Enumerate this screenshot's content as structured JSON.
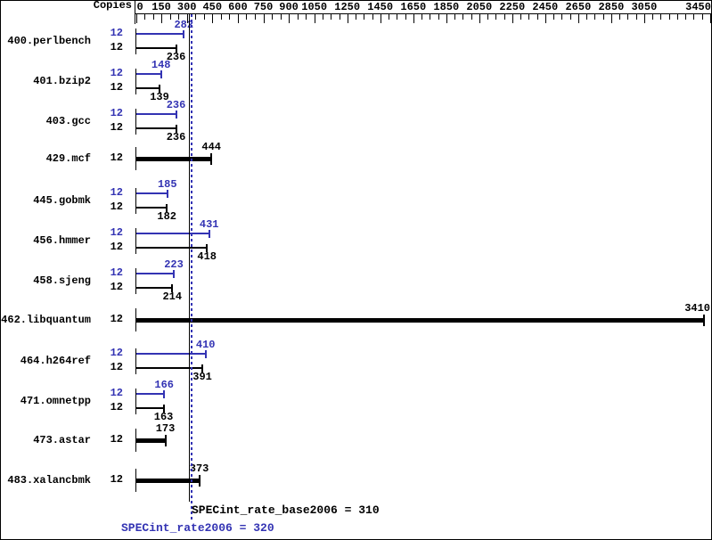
{
  "header": {
    "copies_label": "Copies"
  },
  "colors": {
    "peak": "#3333b3",
    "base": "#000000"
  },
  "chart_data": {
    "type": "bar",
    "orientation": "horizontal",
    "title": "",
    "xlabel": "",
    "ylabel": "Copies",
    "axis": {
      "min": 0,
      "max": 3450,
      "minor_tick_step": 50,
      "labeled_ticks": [
        0,
        150,
        300,
        450,
        600,
        750,
        900,
        1050,
        1250,
        1450,
        1650,
        1850,
        2050,
        2250,
        2450,
        2650,
        2850,
        3050,
        3450
      ],
      "grid": false
    },
    "series": [
      {
        "name": "peak",
        "color_key": "peak"
      },
      {
        "name": "base",
        "color_key": "base"
      }
    ],
    "benchmarks": [
      {
        "name": "400.perlbench",
        "copies": 12,
        "peak": 282,
        "base": 236,
        "single_bar": false
      },
      {
        "name": "401.bzip2",
        "copies": 12,
        "peak": 148,
        "base": 139,
        "single_bar": false
      },
      {
        "name": "403.gcc",
        "copies": 12,
        "peak": 236,
        "base": 236,
        "single_bar": false
      },
      {
        "name": "429.mcf",
        "copies": 12,
        "peak": 444,
        "base": 444,
        "single_bar": true
      },
      {
        "name": "445.gobmk",
        "copies": 12,
        "peak": 185,
        "base": 182,
        "single_bar": false
      },
      {
        "name": "456.hmmer",
        "copies": 12,
        "peak": 431,
        "base": 418,
        "single_bar": false
      },
      {
        "name": "458.sjeng",
        "copies": 12,
        "peak": 223,
        "base": 214,
        "single_bar": false
      },
      {
        "name": "462.libquantum",
        "copies": 12,
        "peak": 3410,
        "base": 3410,
        "single_bar": true
      },
      {
        "name": "464.h264ref",
        "copies": 12,
        "peak": 410,
        "base": 391,
        "single_bar": false
      },
      {
        "name": "471.omnetpp",
        "copies": 12,
        "peak": 166,
        "base": 163,
        "single_bar": false
      },
      {
        "name": "473.astar",
        "copies": 12,
        "peak": 173,
        "base": 173,
        "single_bar": true
      },
      {
        "name": "483.xalancbmk",
        "copies": 12,
        "peak": 373,
        "base": 373,
        "single_bar": true
      }
    ],
    "reference_lines": [
      {
        "name": "base",
        "value": 310,
        "style": "solid",
        "color_key": "base"
      },
      {
        "name": "peak",
        "value": 320,
        "style": "dotted",
        "color_key": "peak"
      }
    ]
  },
  "summary": {
    "base_label": "SPECint_rate_base2006 = 310",
    "peak_label": "SPECint_rate2006 = 320",
    "base_value": 310,
    "peak_value": 320
  }
}
